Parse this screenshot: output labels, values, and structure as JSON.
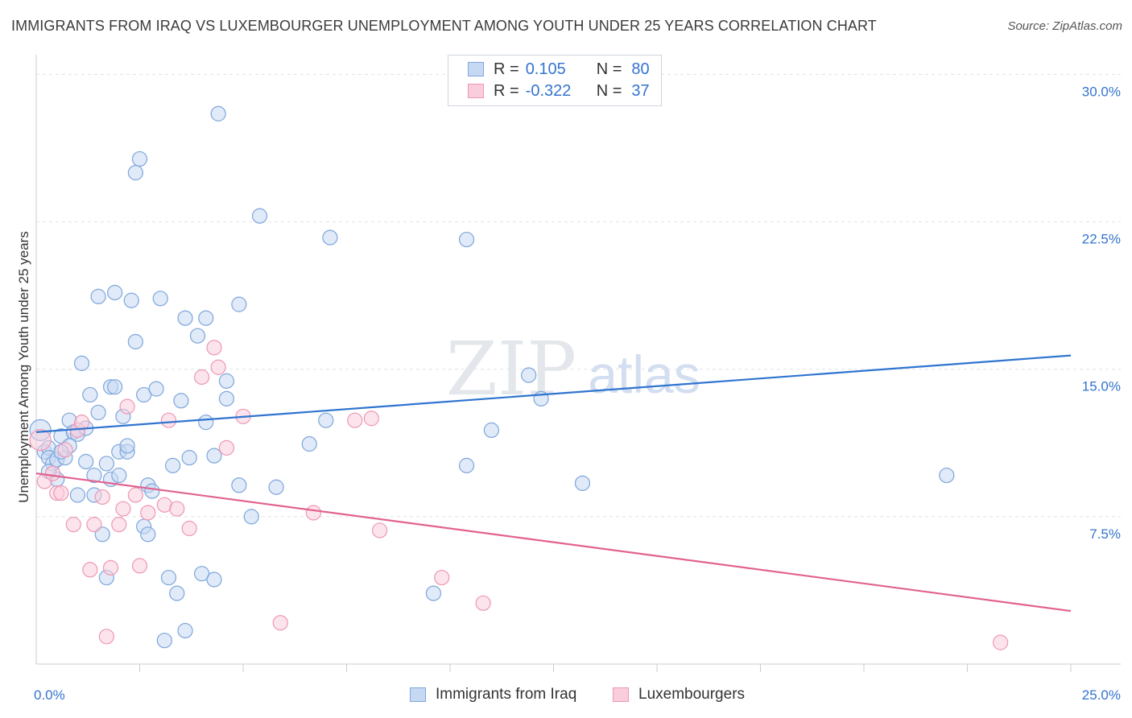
{
  "title": "IMMIGRANTS FROM IRAQ VS LUXEMBOURGER UNEMPLOYMENT AMONG YOUTH UNDER 25 YEARS CORRELATION CHART",
  "source": "Source: ZipAtlas.com",
  "colors": {
    "blue_fill": "#c6d9f2",
    "blue_stroke": "#7ea6dc",
    "blue_line": "#2f74d0",
    "blue_text": "#3474cf",
    "pink_fill": "#f9cddc",
    "pink_stroke": "#ee97b4",
    "pink_line": "#e2628f",
    "pink_text": "#3474cf",
    "grid": "#dfe3e8",
    "axis": "#c8ccd2",
    "watermark": "#e4e7ec"
  },
  "legend": {
    "r1_label": "R =",
    "r1_value": "0.105",
    "n1_label": "N =",
    "n1_value": "80",
    "r2_label": "R =",
    "r2_value": "-0.322",
    "n2_label": "N =",
    "n2_value": "37"
  },
  "bottom_legend": {
    "series1": "Immigrants from Iraq",
    "series2": "Luxembourgers"
  },
  "watermark": {
    "zip": "ZIP",
    "atlas": "atlas"
  },
  "chart_data": {
    "type": "scatter",
    "title": "IMMIGRANTS FROM IRAQ VS LUXEMBOURGER UNEMPLOYMENT AMONG YOUTH UNDER 25 YEARS CORRELATION CHART",
    "xlabel": "",
    "ylabel": "Unemployment Among Youth under 25 years",
    "xlim": [
      0,
      25
    ],
    "ylim": [
      0,
      31
    ],
    "x_tick_labels": [
      {
        "value": 0,
        "label": "0.0%"
      },
      {
        "value": 25,
        "label": "25.0%"
      }
    ],
    "y_tick_labels": [
      {
        "value": 7.5,
        "label": "7.5%"
      },
      {
        "value": 15,
        "label": "15.0%"
      },
      {
        "value": 22.5,
        "label": "22.5%"
      },
      {
        "value": 30,
        "label": "30.0%"
      }
    ],
    "x_minor_ticks": [
      2.5,
      5,
      7.5,
      10,
      12.5,
      15,
      17.5,
      20,
      22.5,
      25
    ],
    "grid": true,
    "series": [
      {
        "name": "Immigrants from Iraq",
        "color": "blue",
        "regression": {
          "x": [
            0,
            25
          ],
          "y": [
            11.8,
            15.7
          ]
        },
        "points": [
          [
            0.1,
            11.9,
            14
          ],
          [
            0.2,
            10.8,
            10
          ],
          [
            0.3,
            11,
            10
          ],
          [
            0.3,
            10.5,
            10
          ],
          [
            0.4,
            10.2,
            10
          ],
          [
            0.5,
            10.4,
            10
          ],
          [
            0.5,
            9.4,
            10
          ],
          [
            0.6,
            11.6,
            10
          ],
          [
            0.7,
            10.5,
            10
          ],
          [
            0.8,
            11.1,
            10
          ],
          [
            0.8,
            12.4,
            10
          ],
          [
            0.9,
            11.8,
            10
          ],
          [
            1.0,
            11.7,
            10
          ],
          [
            1.0,
            8.6,
            10
          ],
          [
            1.1,
            15.3,
            10
          ],
          [
            1.2,
            10.3,
            10
          ],
          [
            1.3,
            13.7,
            10
          ],
          [
            1.4,
            8.6,
            10
          ],
          [
            1.4,
            9.6,
            10
          ],
          [
            1.5,
            12.8,
            10
          ],
          [
            1.5,
            18.7,
            10
          ],
          [
            1.6,
            6.6,
            10
          ],
          [
            1.7,
            4.4,
            10
          ],
          [
            1.7,
            10.2,
            10
          ],
          [
            1.8,
            9.4,
            10
          ],
          [
            1.8,
            14.1,
            10
          ],
          [
            1.9,
            14.1,
            10
          ],
          [
            1.9,
            18.9,
            10
          ],
          [
            2.1,
            12.6,
            10
          ],
          [
            2.0,
            10.8,
            10
          ],
          [
            2.2,
            10.8,
            10
          ],
          [
            2.2,
            11.1,
            10
          ],
          [
            2.3,
            18.5,
            10
          ],
          [
            2.4,
            16.4,
            10
          ],
          [
            2.4,
            25,
            10
          ],
          [
            2.5,
            25.7,
            10
          ],
          [
            2.6,
            13.7,
            10
          ],
          [
            2.6,
            7,
            10
          ],
          [
            2.7,
            9.1,
            10
          ],
          [
            2.7,
            6.6,
            10
          ],
          [
            2.8,
            8.8,
            10
          ],
          [
            2.9,
            14,
            10
          ],
          [
            3.0,
            18.6,
            10
          ],
          [
            3.1,
            1.2,
            10
          ],
          [
            3.2,
            4.4,
            10
          ],
          [
            3.3,
            10.1,
            10
          ],
          [
            3.4,
            3.6,
            10
          ],
          [
            3.5,
            13.4,
            10
          ],
          [
            3.6,
            1.7,
            10
          ],
          [
            3.6,
            17.6,
            10
          ],
          [
            3.7,
            10.5,
            10
          ],
          [
            3.9,
            16.7,
            10
          ],
          [
            4.0,
            4.6,
            10
          ],
          [
            4.1,
            12.3,
            10
          ],
          [
            4.1,
            17.6,
            10
          ],
          [
            4.3,
            10.6,
            10
          ],
          [
            4.3,
            4.3,
            10
          ],
          [
            4.6,
            14.4,
            10
          ],
          [
            4.6,
            13.5,
            10
          ],
          [
            4.9,
            9.1,
            10
          ],
          [
            4.9,
            18.3,
            10
          ],
          [
            5.2,
            7.5,
            10
          ],
          [
            5.4,
            22.8,
            10
          ],
          [
            5.8,
            9,
            10
          ],
          [
            4.4,
            28,
            10
          ],
          [
            6.6,
            11.2,
            10
          ],
          [
            7.0,
            12.4,
            10
          ],
          [
            7.1,
            21.7,
            10
          ],
          [
            9.6,
            3.6,
            10
          ],
          [
            10.4,
            10.1,
            10
          ],
          [
            10.4,
            21.6,
            10
          ],
          [
            11.0,
            11.9,
            10
          ],
          [
            11.9,
            14.7,
            10
          ],
          [
            12.2,
            13.5,
            10
          ],
          [
            13.2,
            9.2,
            10
          ],
          [
            22.0,
            9.6,
            10
          ],
          [
            0.3,
            9.8,
            10
          ],
          [
            1.2,
            12.0,
            10
          ],
          [
            2.0,
            9.6,
            10
          ],
          [
            0.6,
            10.8,
            10
          ]
        ]
      },
      {
        "name": "Luxembourgers",
        "color": "pink",
        "regression": {
          "x": [
            0,
            25
          ],
          "y": [
            9.7,
            2.7
          ]
        },
        "points": [
          [
            0.1,
            11.4,
            14
          ],
          [
            0.2,
            9.3,
            10
          ],
          [
            0.4,
            9.7,
            10
          ],
          [
            0.5,
            8.7,
            10
          ],
          [
            0.6,
            8.7,
            10
          ],
          [
            0.7,
            10.9,
            10
          ],
          [
            0.9,
            7.1,
            10
          ],
          [
            1.0,
            11.9,
            10
          ],
          [
            1.1,
            12.3,
            10
          ],
          [
            1.3,
            4.8,
            10
          ],
          [
            1.4,
            7.1,
            10
          ],
          [
            1.6,
            8.5,
            10
          ],
          [
            1.7,
            1.4,
            10
          ],
          [
            1.8,
            4.9,
            10
          ],
          [
            2.0,
            7.1,
            10
          ],
          [
            2.1,
            7.9,
            10
          ],
          [
            2.2,
            13.1,
            10
          ],
          [
            2.4,
            8.6,
            10
          ],
          [
            2.5,
            5,
            10
          ],
          [
            2.7,
            7.7,
            10
          ],
          [
            3.1,
            8.1,
            10
          ],
          [
            3.2,
            12.4,
            10
          ],
          [
            3.4,
            7.9,
            10
          ],
          [
            3.7,
            6.9,
            10
          ],
          [
            4.0,
            14.6,
            10
          ],
          [
            4.3,
            16.1,
            10
          ],
          [
            4.4,
            15.1,
            10
          ],
          [
            4.6,
            11,
            10
          ],
          [
            5.0,
            12.6,
            10
          ],
          [
            5.9,
            2.1,
            10
          ],
          [
            6.7,
            7.7,
            10
          ],
          [
            7.7,
            12.4,
            10
          ],
          [
            8.3,
            6.8,
            10
          ],
          [
            8.1,
            12.5,
            10
          ],
          [
            9.8,
            4.4,
            10
          ],
          [
            10.8,
            3.1,
            10
          ],
          [
            23.3,
            1.1,
            10
          ]
        ]
      }
    ]
  }
}
